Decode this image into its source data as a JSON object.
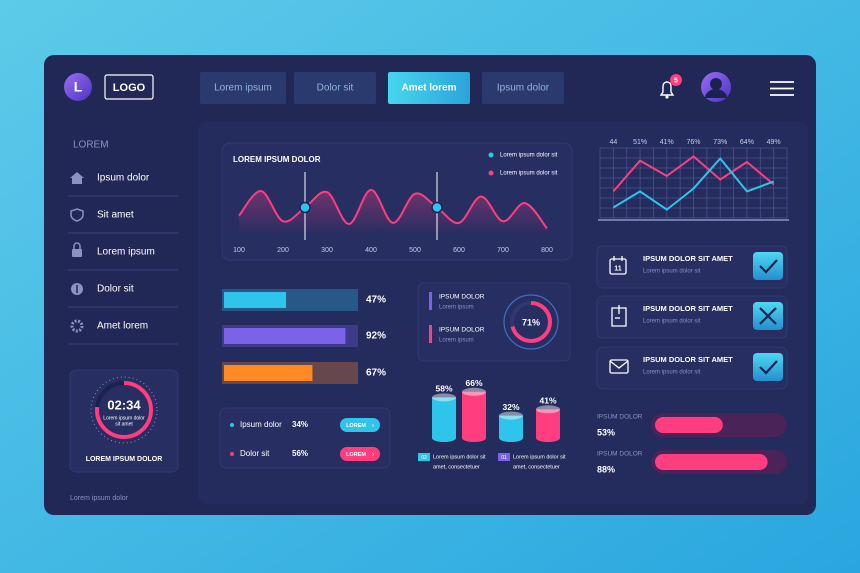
{
  "header": {
    "avatar": "L",
    "logo": "LOGO",
    "tabs": [
      "Lorem ipsum",
      "Dolor sit",
      "Amet lorem",
      "Ipsum dolor"
    ],
    "active_tab": 2,
    "notifications": 5
  },
  "sidebar": {
    "heading": "LOREM",
    "items": [
      "Ipsum dolor",
      "Sit amet",
      "Lorem ipsum",
      "Dolor sit",
      "Amet lorem"
    ],
    "timer": {
      "time": "02:34",
      "subtitle": [
        "Lorem ipsum dolor",
        "sit amet"
      ],
      "label": "LOREM IPSUM DOLOR"
    },
    "footer": "Lorem ipsum dolor"
  },
  "stats": [
    {
      "name": "Ipsum dolor",
      "value": "34%",
      "button": "LOREM"
    },
    {
      "name": "Dolor sit",
      "value": "56%",
      "button": "LOREM"
    }
  ],
  "tasks": [
    {
      "icon": "11",
      "title": "IPSUM DOLOR SIT AMET",
      "subtitle": "Lorem ipsum dolor sit",
      "status": "done"
    },
    {
      "title": "IPSUM DOLOR SIT AMET",
      "subtitle": "Lorem ipsum dolor sit",
      "status": "rejected"
    },
    {
      "title": "IPSUM DOLOR SIT AMET",
      "subtitle": "Lorem ipsum dolor sit",
      "status": "done"
    }
  ],
  "chart_data": [
    {
      "type": "line",
      "title": "LOREM IPSUM DOLOR",
      "x": [
        100,
        150,
        200,
        250,
        300,
        350,
        400,
        450,
        500,
        550,
        600,
        650,
        700,
        750,
        800
      ],
      "xlim": [
        100,
        800
      ],
      "xticks": [
        100,
        200,
        300,
        400,
        500,
        600,
        700,
        800
      ],
      "ylim": [
        0,
        100
      ],
      "series": [
        {
          "name": "Lorem ipsum dolor sit",
          "color": "#2fc4ec",
          "mode": "markers",
          "values": [
            null,
            null,
            null,
            50,
            null,
            null,
            null,
            null,
            null,
            50,
            null,
            null,
            null,
            null,
            null
          ]
        },
        {
          "name": "Lorem ipsum dolor sit",
          "color": "#ff3d7f",
          "values": [
            35,
            80,
            25,
            50,
            78,
            20,
            82,
            22,
            75,
            50,
            22,
            70,
            25,
            58,
            12
          ]
        }
      ]
    },
    {
      "type": "line",
      "categories": [
        "44",
        "51%",
        "41%",
        "76%",
        "73%",
        "64%",
        "49%"
      ],
      "ylim": [
        0,
        100
      ],
      "grid": true,
      "series": [
        {
          "color": "#ff3d7f",
          "values": [
            38,
            82,
            60,
            88,
            55,
            80,
            48
          ]
        },
        {
          "color": "#2fc4ec",
          "values": [
            15,
            38,
            12,
            42,
            85,
            38,
            52
          ]
        }
      ]
    },
    {
      "type": "bar",
      "values": [
        47,
        92,
        67
      ],
      "value_labels": [
        "47%",
        "92%",
        "67%"
      ],
      "colors": [
        "#2fc4ec",
        "#7b62e8",
        "#ff8a24"
      ],
      "xlim": [
        0,
        100
      ]
    },
    {
      "type": "donut",
      "values": [
        71
      ],
      "value_labels": [
        "71%"
      ],
      "color": "#ff3d7f",
      "items": [
        {
          "title": "IPSUM DOLOR",
          "subtitle": "Lorem ipsum",
          "color": "#7b62e8"
        },
        {
          "title": "IPSUM DOLOR",
          "subtitle": "Lorem ipsum",
          "color": "#ff3d7f"
        }
      ]
    },
    {
      "type": "cylinder",
      "values": [
        58,
        66,
        32,
        41
      ],
      "value_labels": [
        "58%",
        "66%",
        "32%",
        "41%"
      ],
      "colors": [
        "#2fc4ec",
        "#ff3d7f",
        "#2fc4ec",
        "#ff3d7f"
      ],
      "ylim": [
        0,
        100
      ],
      "legend": [
        {
          "badge": "02",
          "color": "#2fc4ec",
          "lines": [
            "Lorem ipsum dolor sit",
            "amet, consectetuer"
          ]
        },
        {
          "badge": "01",
          "color": "#7b62e8",
          "lines": [
            "Lorem ipsum dolor sit",
            "amet, consectetuer"
          ]
        }
      ]
    },
    {
      "type": "bar",
      "categories": [
        "IPSUM DOLOR",
        "IPSUM DOLOR"
      ],
      "values": [
        53,
        88
      ],
      "value_labels": [
        "53%",
        "88%"
      ],
      "colors": [
        "#ff3d7f",
        "#ff3d7f"
      ],
      "xlim": [
        0,
        100
      ]
    }
  ]
}
